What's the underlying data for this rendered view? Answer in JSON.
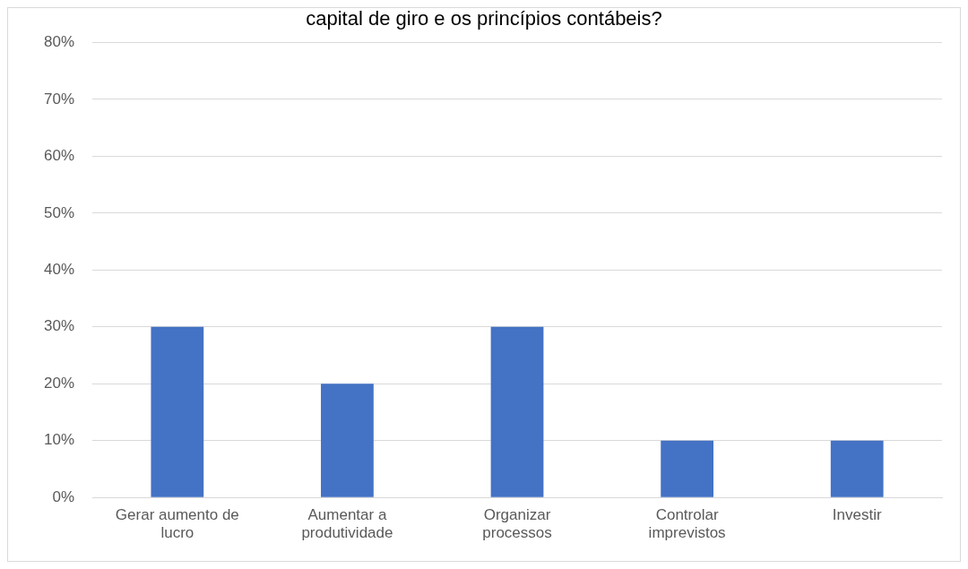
{
  "chart_data": {
    "type": "bar",
    "title": "capital de giro e os princípios contábeis?",
    "categories": [
      "Gerar aumento de lucro",
      "Aumentar a produtividade",
      "Organizar processos",
      "Controlar imprevistos",
      "Investir"
    ],
    "values": [
      30,
      20,
      30,
      10,
      10
    ],
    "color": "#4472c4",
    "ylim": [
      0,
      80
    ],
    "yticks": [
      {
        "value": 0,
        "label": "0%"
      },
      {
        "value": 10,
        "label": "10%"
      },
      {
        "value": 20,
        "label": "20%"
      },
      {
        "value": 30,
        "label": "30%"
      },
      {
        "value": 40,
        "label": "40%"
      },
      {
        "value": 50,
        "label": "50%"
      },
      {
        "value": 60,
        "label": "60%"
      },
      {
        "value": 70,
        "label": "70%"
      },
      {
        "value": 80,
        "label": "80%"
      }
    ],
    "grid": "y",
    "legend": false
  }
}
